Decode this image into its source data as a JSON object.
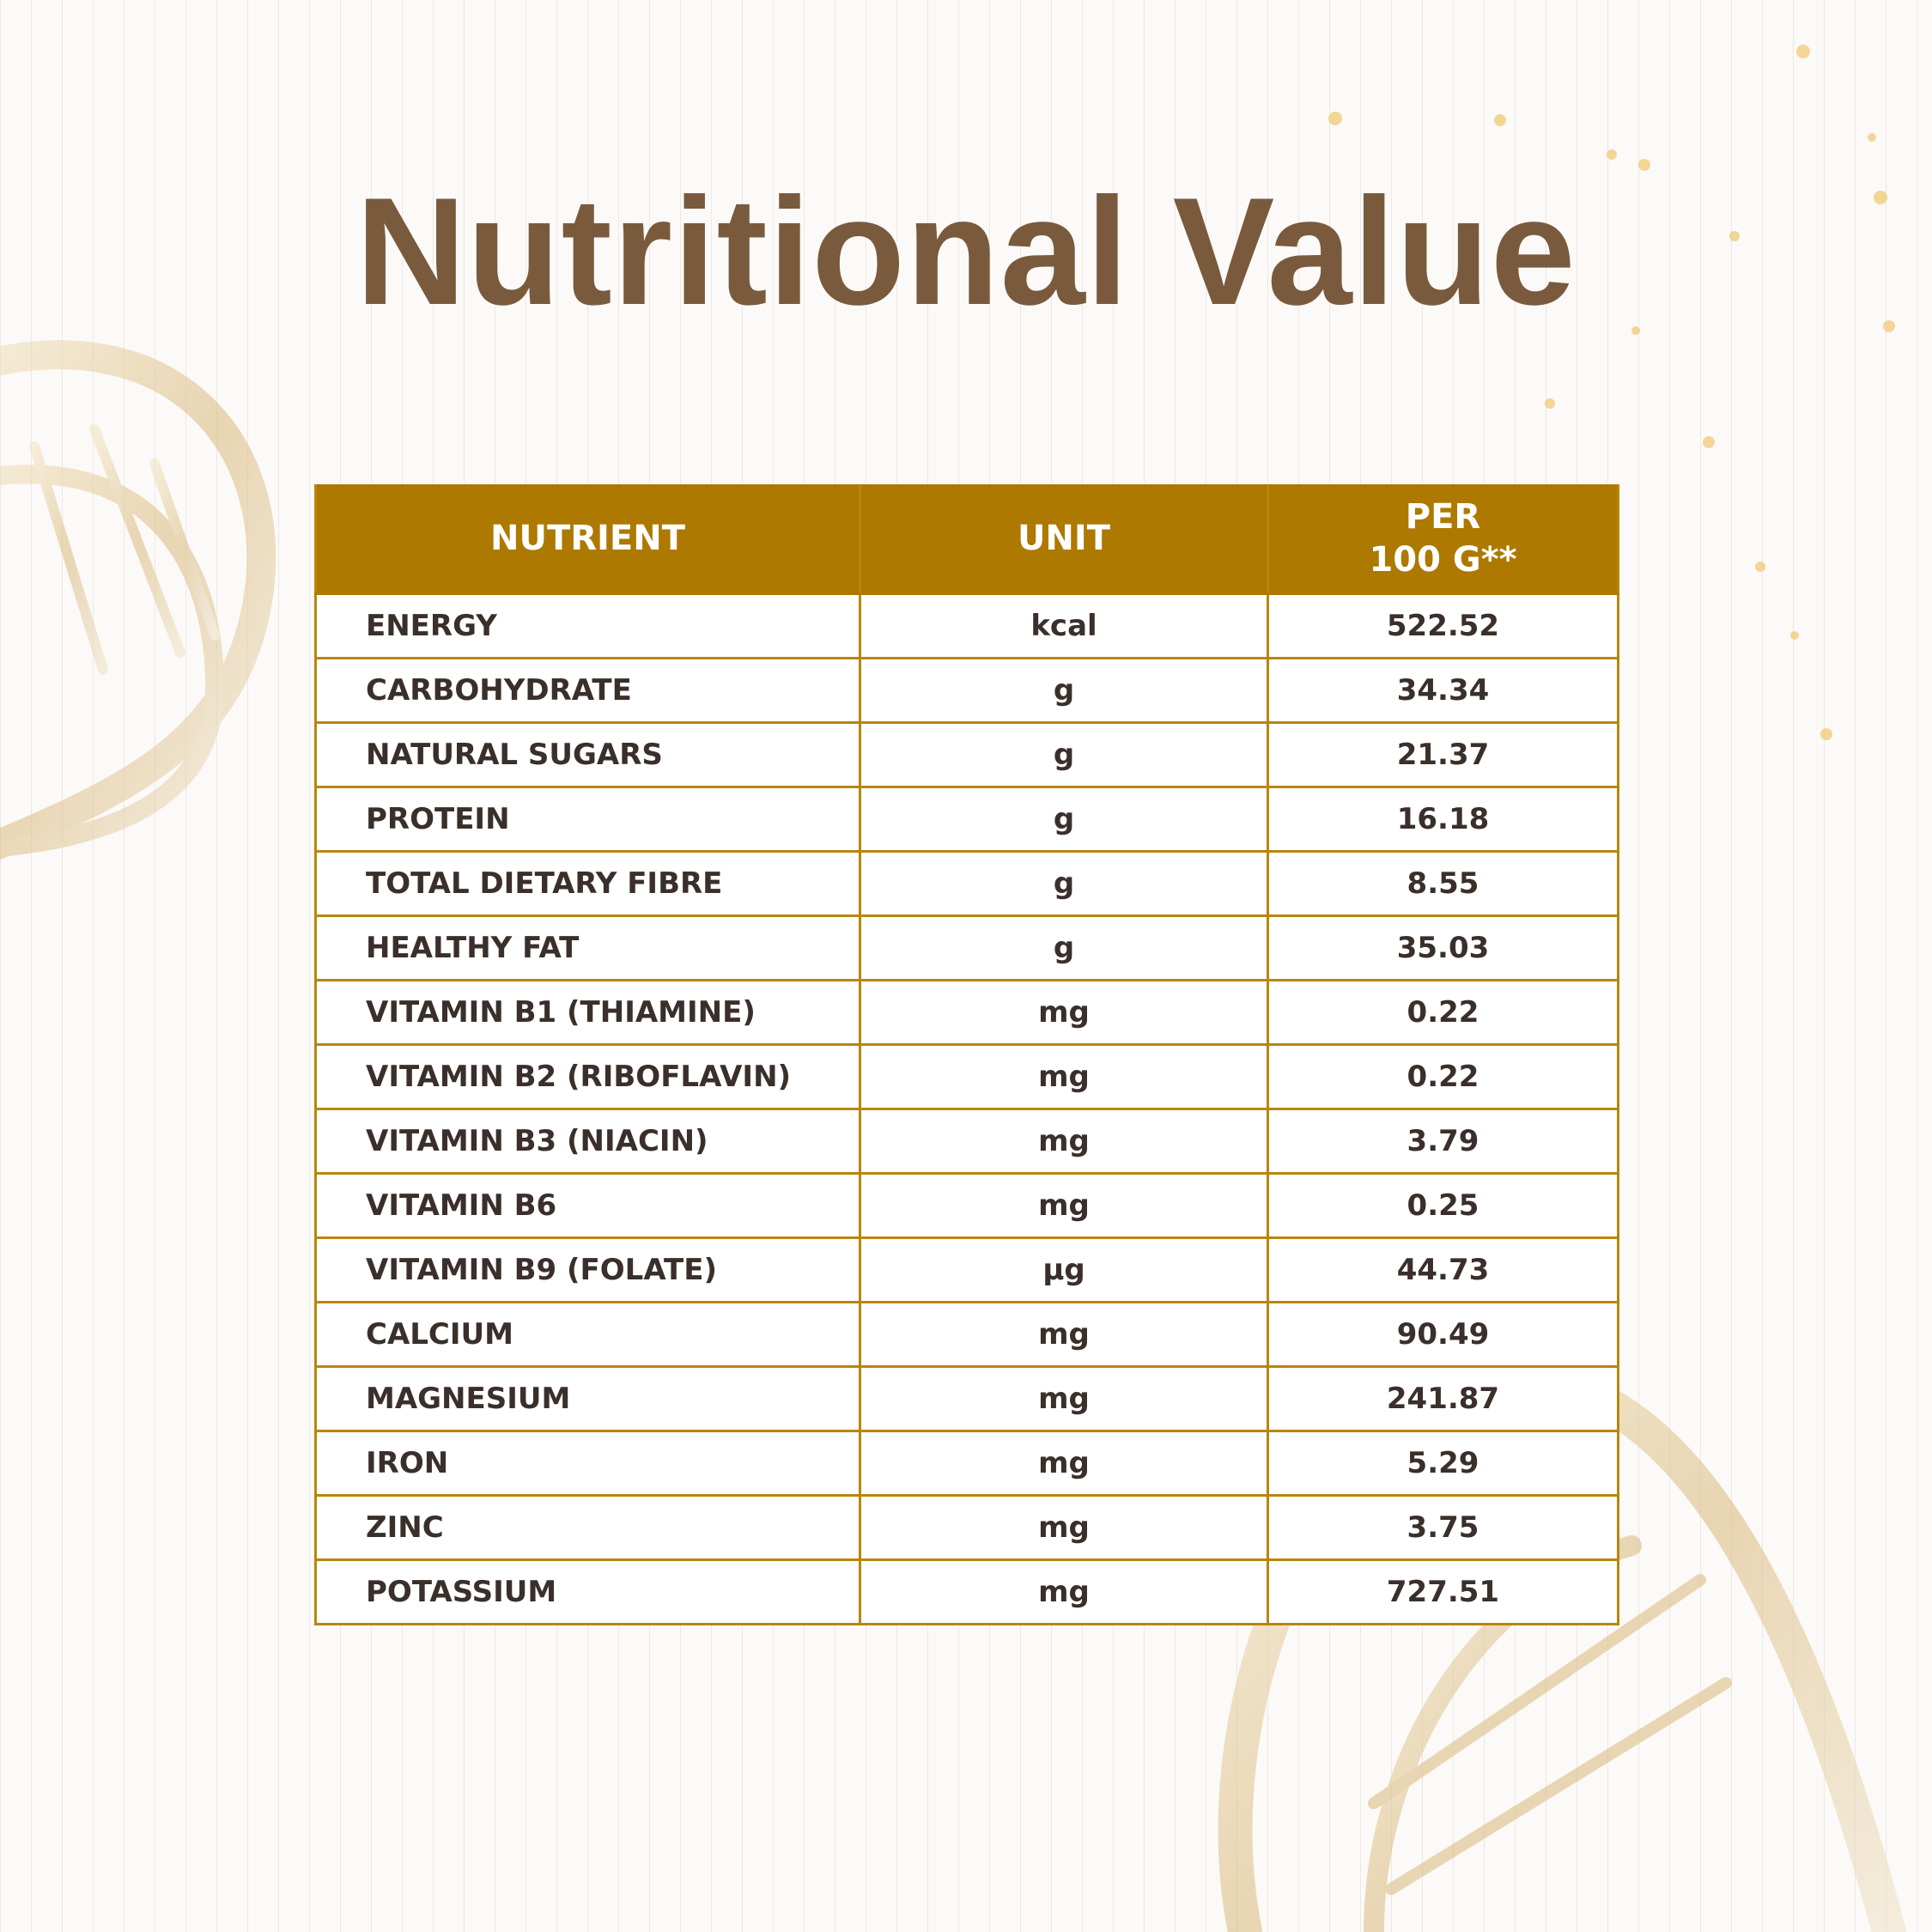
{
  "header": {
    "title": "Nutritional Value"
  },
  "table": {
    "columns": [
      "NUTRIENT",
      "UNIT",
      "PER\n100 G**"
    ],
    "rows": [
      [
        "ENERGY",
        "kcal",
        "522.52"
      ],
      [
        "CARBOHYDRATE",
        "g",
        "34.34"
      ],
      [
        "NATURAL SUGARS",
        "g",
        "21.37"
      ],
      [
        "PROTEIN",
        "g",
        "16.18"
      ],
      [
        "TOTAL DIETARY FIBRE",
        "g",
        "8.55"
      ],
      [
        "HEALTHY FAT",
        "g",
        "35.03"
      ],
      [
        "VITAMIN B1 (THIAMINE)",
        "mg",
        "0.22"
      ],
      [
        "VITAMIN B2 (RIBOFLAVIN)",
        "mg",
        "0.22"
      ],
      [
        "VITAMIN B3 (NIACIN)",
        "mg",
        "3.79"
      ],
      [
        "VITAMIN B6",
        "mg",
        "0.25"
      ],
      [
        "VITAMIN B9 (FOLATE)",
        "µg",
        "44.73"
      ],
      [
        "CALCIUM",
        "mg",
        "90.49"
      ],
      [
        "MAGNESIUM",
        "mg",
        "241.87"
      ],
      [
        "IRON",
        "mg",
        "5.29"
      ],
      [
        "ZINC",
        "mg",
        "3.75"
      ],
      [
        "POTASSIUM",
        "mg",
        "727.51"
      ]
    ]
  }
}
